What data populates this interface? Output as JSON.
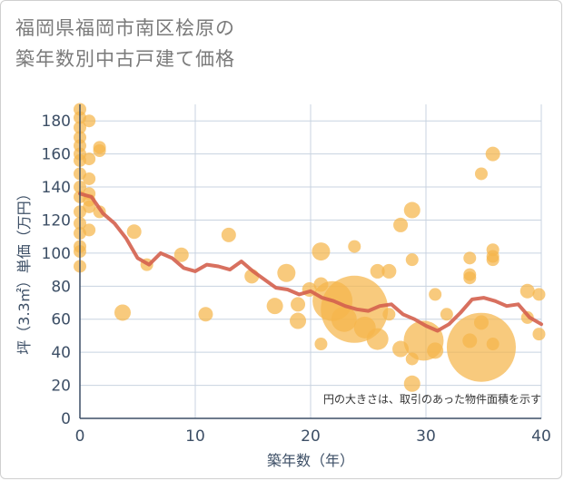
{
  "title_line1": "福岡県福岡市南区桧原の",
  "title_line2": "築年数別中古戸建て価格",
  "chart_data": {
    "type": "scatter",
    "xlabel": "築年数（年）",
    "ylabel": "坪（3.3㎡）単価（万円）",
    "xlim": [
      0,
      40
    ],
    "ylim": [
      0,
      190
    ],
    "x_ticks": [
      0,
      10,
      20,
      30,
      40
    ],
    "y_ticks": [
      0,
      20,
      40,
      60,
      80,
      100,
      120,
      140,
      160,
      180
    ],
    "grid": true,
    "annotation": "円の大きさは、取引のあった物件面積を示す",
    "colors": {
      "bubble": "#f5b64b",
      "line": "#d4604e",
      "axis": "#3d4f66",
      "grid": "#c8d3e0"
    },
    "bubbles": [
      {
        "x": 0,
        "y": 187,
        "s": 7
      },
      {
        "x": 0,
        "y": 182,
        "s": 7
      },
      {
        "x": 0,
        "y": 176,
        "s": 7
      },
      {
        "x": 0,
        "y": 170,
        "s": 7
      },
      {
        "x": 0,
        "y": 165,
        "s": 7
      },
      {
        "x": 0,
        "y": 160,
        "s": 7
      },
      {
        "x": 0,
        "y": 156,
        "s": 7
      },
      {
        "x": 0,
        "y": 148,
        "s": 7
      },
      {
        "x": 0,
        "y": 140,
        "s": 7
      },
      {
        "x": 0,
        "y": 134,
        "s": 7
      },
      {
        "x": 0,
        "y": 125,
        "s": 7
      },
      {
        "x": 0,
        "y": 118,
        "s": 7
      },
      {
        "x": 0,
        "y": 112,
        "s": 7
      },
      {
        "x": 0,
        "y": 104,
        "s": 7
      },
      {
        "x": 0,
        "y": 101,
        "s": 7
      },
      {
        "x": 0,
        "y": 92,
        "s": 7
      },
      {
        "x": 0.8,
        "y": 180,
        "s": 7
      },
      {
        "x": 0.8,
        "y": 157,
        "s": 7
      },
      {
        "x": 0.8,
        "y": 145,
        "s": 7
      },
      {
        "x": 0.8,
        "y": 136,
        "s": 7
      },
      {
        "x": 0.8,
        "y": 132,
        "s": 7
      },
      {
        "x": 0.8,
        "y": 128,
        "s": 7
      },
      {
        "x": 0.8,
        "y": 114,
        "s": 7
      },
      {
        "x": 1.7,
        "y": 164,
        "s": 7
      },
      {
        "x": 1.7,
        "y": 162,
        "s": 7
      },
      {
        "x": 1.7,
        "y": 125,
        "s": 7
      },
      {
        "x": 3.7,
        "y": 64,
        "s": 9
      },
      {
        "x": 4.7,
        "y": 113,
        "s": 8
      },
      {
        "x": 5.8,
        "y": 93,
        "s": 7
      },
      {
        "x": 8.8,
        "y": 99,
        "s": 8
      },
      {
        "x": 10.9,
        "y": 63,
        "s": 8
      },
      {
        "x": 12.9,
        "y": 111,
        "s": 8
      },
      {
        "x": 14.9,
        "y": 86,
        "s": 8
      },
      {
        "x": 16.9,
        "y": 68,
        "s": 9
      },
      {
        "x": 17.9,
        "y": 88,
        "s": 10
      },
      {
        "x": 18.9,
        "y": 69,
        "s": 8
      },
      {
        "x": 18.9,
        "y": 59,
        "s": 9
      },
      {
        "x": 19.9,
        "y": 78,
        "s": 8
      },
      {
        "x": 20.9,
        "y": 101,
        "s": 10
      },
      {
        "x": 20.9,
        "y": 81,
        "s": 8
      },
      {
        "x": 20.9,
        "y": 45,
        "s": 7
      },
      {
        "x": 21.9,
        "y": 71,
        "s": 22
      },
      {
        "x": 22.9,
        "y": 60,
        "s": 14
      },
      {
        "x": 23.8,
        "y": 66,
        "s": 37
      },
      {
        "x": 23.8,
        "y": 104,
        "s": 7
      },
      {
        "x": 24.7,
        "y": 55,
        "s": 12
      },
      {
        "x": 25.8,
        "y": 89,
        "s": 8
      },
      {
        "x": 25.8,
        "y": 48,
        "s": 12
      },
      {
        "x": 26.8,
        "y": 89,
        "s": 8
      },
      {
        "x": 26.8,
        "y": 63,
        "s": 7
      },
      {
        "x": 27.8,
        "y": 117,
        "s": 8
      },
      {
        "x": 27.8,
        "y": 42,
        "s": 9
      },
      {
        "x": 28.8,
        "y": 126,
        "s": 9
      },
      {
        "x": 28.8,
        "y": 96,
        "s": 7
      },
      {
        "x": 28.8,
        "y": 36,
        "s": 7
      },
      {
        "x": 28.8,
        "y": 21,
        "s": 9
      },
      {
        "x": 29.8,
        "y": 47,
        "s": 22
      },
      {
        "x": 30.8,
        "y": 75,
        "s": 7
      },
      {
        "x": 30.8,
        "y": 41,
        "s": 9
      },
      {
        "x": 31.8,
        "y": 63,
        "s": 7
      },
      {
        "x": 33.8,
        "y": 97,
        "s": 7
      },
      {
        "x": 33.8,
        "y": 87,
        "s": 7
      },
      {
        "x": 33.8,
        "y": 85,
        "s": 7
      },
      {
        "x": 33.8,
        "y": 47,
        "s": 8
      },
      {
        "x": 34.8,
        "y": 148,
        "s": 7
      },
      {
        "x": 34.8,
        "y": 58,
        "s": 8
      },
      {
        "x": 34.8,
        "y": 43,
        "s": 38
      },
      {
        "x": 35.8,
        "y": 160,
        "s": 8
      },
      {
        "x": 35.8,
        "y": 102,
        "s": 7
      },
      {
        "x": 35.8,
        "y": 98,
        "s": 7
      },
      {
        "x": 35.8,
        "y": 96,
        "s": 7
      },
      {
        "x": 35.8,
        "y": 45,
        "s": 7
      },
      {
        "x": 38.8,
        "y": 77,
        "s": 8
      },
      {
        "x": 38.8,
        "y": 61,
        "s": 7
      },
      {
        "x": 39.8,
        "y": 75,
        "s": 7
      },
      {
        "x": 39.8,
        "y": 51,
        "s": 7
      }
    ],
    "line": {
      "x": [
        0,
        1,
        2,
        3,
        4,
        5,
        6,
        7,
        8,
        9,
        10,
        11,
        12,
        13,
        14,
        15,
        16,
        17,
        18,
        19,
        20,
        21,
        22,
        23,
        24,
        25,
        26,
        27,
        28,
        29,
        30,
        31,
        32,
        33,
        34,
        35,
        36,
        37,
        38,
        39,
        40
      ],
      "y": [
        136,
        134,
        124,
        118,
        109,
        97,
        93,
        100,
        97,
        91,
        89,
        93,
        92,
        90,
        95,
        89,
        84,
        79,
        78,
        75,
        77,
        73,
        71,
        68,
        66,
        65,
        68,
        69,
        63,
        60,
        56,
        53,
        57,
        64,
        72,
        73,
        71,
        68,
        69,
        61,
        57
      ]
    }
  }
}
